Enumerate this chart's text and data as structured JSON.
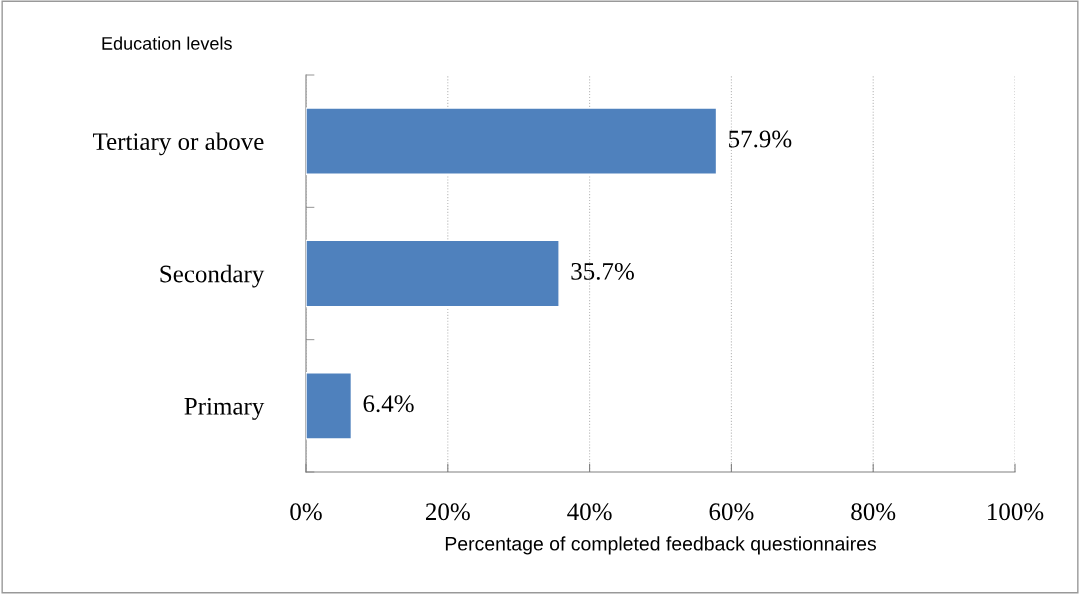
{
  "chart_data": {
    "type": "bar",
    "orientation": "horizontal",
    "categories": [
      "Tertiary or above",
      "Secondary",
      "Primary"
    ],
    "values": [
      57.9,
      35.7,
      6.4
    ],
    "color": "#4f81bd",
    "value_labels": [
      "57.9%",
      "35.7%",
      "6.4%"
    ],
    "xlim": [
      0,
      100
    ],
    "xticks": [
      {
        "value": 0,
        "label": "0%"
      },
      {
        "value": 20,
        "label": "20%"
      },
      {
        "value": 40,
        "label": "40%"
      },
      {
        "value": 60,
        "label": "60%"
      },
      {
        "value": 80,
        "label": "80%"
      },
      {
        "value": 100,
        "label": "100%"
      }
    ],
    "xlabel": "Percentage of completed feedback questionnaires",
    "ylabel": "Education levels",
    "grid": "x",
    "legend": false
  }
}
